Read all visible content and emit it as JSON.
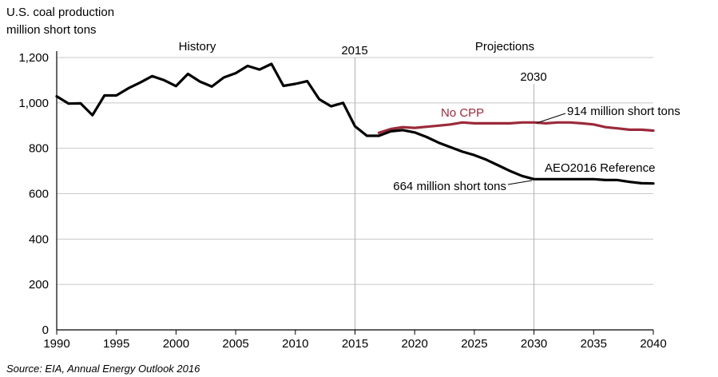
{
  "chart_data": {
    "type": "line",
    "ylabel_line1": "U.S. coal production",
    "ylabel_line2": "million short tons",
    "source": "Source:  EIA, Annual Energy Outlook 2016",
    "xlim": [
      1990,
      2040
    ],
    "ylim": [
      0,
      1200
    ],
    "x_ticks": [
      1990,
      1995,
      2000,
      2005,
      2010,
      2015,
      2020,
      2025,
      2030,
      2035,
      2040
    ],
    "y_ticks": [
      0,
      200,
      400,
      600,
      800,
      1000,
      1200
    ],
    "y_tick_labels": [
      "0",
      "200",
      "400",
      "600",
      "800",
      "1,000",
      "1,200"
    ],
    "grid": "horizontal",
    "vlines": [
      {
        "x": 2015,
        "label": "2015"
      },
      {
        "x": 2030,
        "label": "2030"
      }
    ],
    "regions": [
      {
        "label": "History"
      },
      {
        "label": "Projections"
      }
    ],
    "annotations": {
      "no_cpp_value": "914 million short tons",
      "ref_value": "664 million short tons"
    },
    "series": [
      {
        "name": "AEO2016 Reference",
        "color": "#000000",
        "x": [
          1990,
          1991,
          1992,
          1993,
          1994,
          1995,
          1996,
          1997,
          1998,
          1999,
          2000,
          2001,
          2002,
          2003,
          2004,
          2005,
          2006,
          2007,
          2008,
          2009,
          2010,
          2011,
          2012,
          2013,
          2014,
          2015,
          2016,
          2017,
          2018,
          2019,
          2020,
          2021,
          2022,
          2023,
          2024,
          2025,
          2026,
          2027,
          2028,
          2029,
          2030,
          2031,
          2032,
          2033,
          2034,
          2035,
          2036,
          2037,
          2038,
          2039,
          2040
        ],
        "values": [
          1029,
          997,
          998,
          946,
          1033,
          1033,
          1064,
          1090,
          1118,
          1100,
          1074,
          1128,
          1094,
          1072,
          1112,
          1131,
          1163,
          1147,
          1172,
          1075,
          1084,
          1096,
          1016,
          985,
          1000,
          897,
          855,
          855,
          875,
          880,
          870,
          850,
          825,
          805,
          785,
          770,
          750,
          725,
          700,
          678,
          664,
          664,
          664,
          664,
          664,
          664,
          660,
          660,
          652,
          646,
          645
        ]
      },
      {
        "name": "No CPP",
        "color": "#9b2a3a",
        "x": [
          2017,
          2018,
          2019,
          2020,
          2021,
          2022,
          2023,
          2024,
          2025,
          2026,
          2027,
          2028,
          2029,
          2030,
          2031,
          2032,
          2033,
          2034,
          2035,
          2036,
          2037,
          2038,
          2039,
          2040
        ],
        "values": [
          868,
          885,
          893,
          890,
          895,
          900,
          905,
          914,
          910,
          910,
          910,
          910,
          914,
          914,
          910,
          914,
          914,
          910,
          905,
          893,
          888,
          882,
          882,
          878
        ]
      }
    ]
  }
}
